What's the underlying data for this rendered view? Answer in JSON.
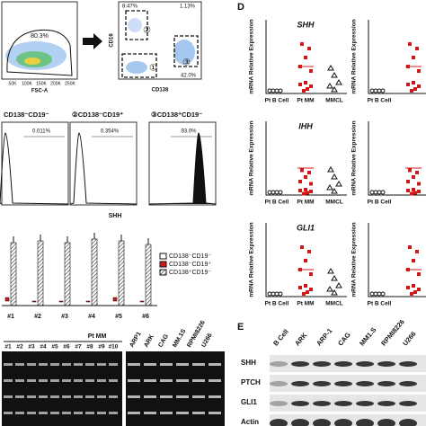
{
  "flow": {
    "gate_main": "80.3%",
    "x_axis": "FSC-A",
    "x_ticks": [
      "50K",
      "100K",
      "150K",
      "200K",
      "250K"
    ],
    "gate_q2": "8.47%",
    "gate_q1": "1.13%",
    "gate_q4": "42.0%",
    "y_axis": "CD19",
    "x_axis2": "CD138",
    "gates": [
      "①",
      "②",
      "③"
    ]
  },
  "histograms": {
    "panels": [
      {
        "label": "CD138⁻CD19⁻",
        "percent": "0.011%"
      },
      {
        "label": "②CD138⁻CD19⁺",
        "percent": "0.354%"
      },
      {
        "label": "③CD138⁺CD19⁻",
        "percent": "93.0%"
      }
    ],
    "x_axis": "SHH"
  },
  "bars": {
    "legend": [
      "CD138⁻CD19⁻",
      "CD138⁻CD19⁺",
      "CD138⁺CD19⁻"
    ],
    "groups": [
      "#1",
      "#2",
      "#3",
      "#4",
      "#5",
      "#6"
    ]
  },
  "gel": {
    "group": "Pt MM",
    "patients": [
      "#1",
      "#2",
      "#3",
      "#4",
      "#5",
      "#6",
      "#7",
      "#8",
      "#9",
      "#10"
    ],
    "cell_lines": [
      "ARP1",
      "ARK",
      "CAG",
      "MM.1S",
      "RPMI8226",
      "U266"
    ]
  },
  "panel_d": {
    "letter": "D",
    "y_axis": "mRNA Relative Expression",
    "genes": [
      "SHH",
      "IHH",
      "GLI1"
    ],
    "x_labels": [
      "Pt B Cell",
      "Pt MM",
      "MMCL"
    ]
  },
  "panel_e": {
    "letter": "E",
    "columns": [
      "B Cell",
      "ARK",
      "ARP-1",
      "CAG",
      "MM1.S",
      "RPMI8226",
      "U266"
    ],
    "rows": [
      "SHH",
      "PTCH",
      "GLI1",
      "Actin"
    ]
  }
}
